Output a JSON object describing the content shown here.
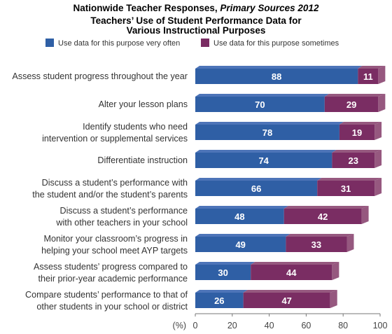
{
  "chart_data": {
    "type": "bar",
    "orientation": "horizontal",
    "stacked": true,
    "title_prefix": "Nationwide Teacher Responses,",
    "title_italic": "Primary Sources 2012",
    "subtitle_line1": "Teachers’ Use of Student Performance Data for",
    "subtitle_line2": "Various Instructional Purposes",
    "axis_unit": "(%)",
    "xlim": [
      0,
      100
    ],
    "xticks": [
      "0",
      "20",
      "40",
      "60",
      "80",
      "100"
    ],
    "legend_position": "top",
    "categories": [
      [
        "Assess student progress throughout the year"
      ],
      [
        "Alter your lesson plans"
      ],
      [
        "Identify students who need",
        "intervention or supplemental services"
      ],
      [
        "Differentiate instruction"
      ],
      [
        "Discuss a student’s performance with",
        "the student and/or the student’s parents"
      ],
      [
        "Discuss a student’s performance",
        "with other teachers in your school"
      ],
      [
        "Monitor your classroom’s progress in",
        "helping your school meet AYP targets"
      ],
      [
        "Assess students’ progress compared to",
        "their prior-year academic performance"
      ],
      [
        "Compare students’ performance to that of",
        "other students in your school or district"
      ]
    ],
    "series": [
      {
        "name": "Use data for this purpose very often",
        "color": "#2f5fa5",
        "values": [
          88,
          70,
          78,
          74,
          66,
          48,
          49,
          30,
          26
        ]
      },
      {
        "name": "Use data for this purpose sometimes",
        "color": "#7a2d63",
        "values": [
          11,
          29,
          19,
          23,
          31,
          42,
          33,
          44,
          47
        ]
      }
    ],
    "colors": {
      "blue_side": "#4d74b8",
      "purple_side": "#96587f",
      "axis": "#777777"
    }
  }
}
